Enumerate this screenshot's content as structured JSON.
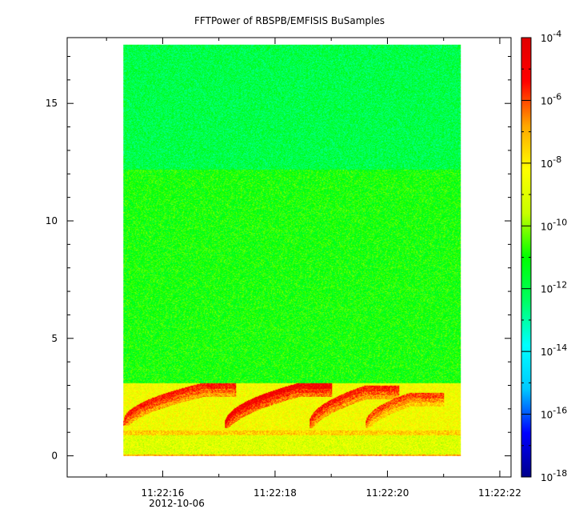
{
  "chart_data": {
    "type": "heatmap",
    "title": "FFTPower of RBSPB/EMFISIS  BuSamples",
    "xlabel": "",
    "ylabel": "",
    "x_axis": {
      "ticks": [
        {
          "value": "2012-10-06T11:22:16",
          "label": "11:22:16"
        },
        {
          "value": "2012-10-06T11:22:18",
          "label": "11:22:18"
        },
        {
          "value": "2012-10-06T11:22:20",
          "label": "11:22:20"
        },
        {
          "value": "2012-10-06T11:22:22",
          "label": "11:22:22"
        }
      ],
      "date_label": "2012-10-06",
      "range": [
        "2012-10-06T11:22:14.3",
        "2012-10-06T11:22:22.2"
      ]
    },
    "y_axis": {
      "ticks": [
        0,
        5,
        10,
        15
      ],
      "range": [
        -0.9,
        17.8
      ]
    },
    "data_extent": {
      "x": [
        "2012-10-06T11:22:15.3",
        "2012-10-06T11:22:21.3"
      ],
      "y": [
        0,
        17.5
      ]
    },
    "colorbar": {
      "scale": "log",
      "range": [
        1e-18,
        0.0001
      ],
      "ticks": [
        {
          "base": "10",
          "exp": "-4"
        },
        {
          "base": "10",
          "exp": "-6"
        },
        {
          "base": "10",
          "exp": "-8"
        },
        {
          "base": "10",
          "exp": "-10"
        },
        {
          "base": "10",
          "exp": "-12"
        },
        {
          "base": "10",
          "exp": "-14"
        },
        {
          "base": "10",
          "exp": "-16"
        },
        {
          "base": "10",
          "exp": "-18"
        }
      ],
      "colormap": [
        "#00008b",
        "#0000ff",
        "#00c8ff",
        "#00ffff",
        "#00ff64",
        "#00ff00",
        "#c8ff00",
        "#ffff00",
        "#ffa500",
        "#ff0000",
        "#e00000"
      ]
    },
    "bands": [
      {
        "y_from": 12.2,
        "y_to": 17.5,
        "log_power": -12.0
      },
      {
        "y_from": 3.1,
        "y_to": 12.2,
        "log_power": -11.0
      },
      {
        "y_from": 1.1,
        "y_to": 3.1,
        "log_power": -8.5
      },
      {
        "y_from": 0.9,
        "y_to": 1.1,
        "log_power": -7.5
      },
      {
        "y_from": 0.1,
        "y_to": 0.9,
        "log_power": -9.0
      },
      {
        "y_from": 0.0,
        "y_to": 0.1,
        "log_power": -7.0
      }
    ],
    "chorus_elements": [
      {
        "t_start": 15.3,
        "t_end": 16.7,
        "f_start": 1.4,
        "f_end": 3.0,
        "log_power": -5.5
      },
      {
        "t_start": 17.1,
        "t_end": 18.4,
        "f_start": 1.3,
        "f_end": 3.0,
        "log_power": -5.0
      },
      {
        "t_start": 18.6,
        "t_end": 19.6,
        "f_start": 1.3,
        "f_end": 2.9,
        "log_power": -5.5
      },
      {
        "t_start": 19.6,
        "t_end": 20.4,
        "f_start": 1.3,
        "f_end": 2.6,
        "log_power": -6.0
      }
    ],
    "grid": false,
    "legend": "colorbar-right"
  }
}
